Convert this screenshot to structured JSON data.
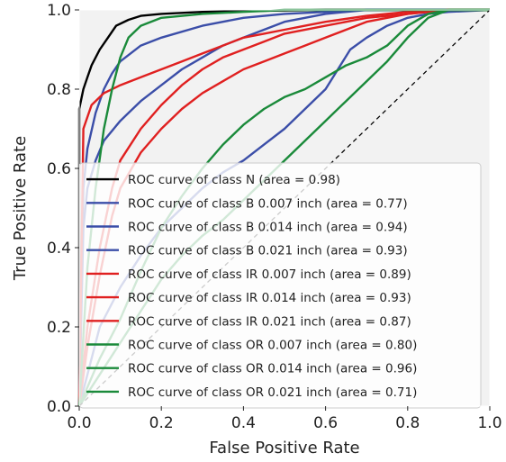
{
  "chart_data": {
    "type": "line",
    "title": "",
    "xlabel": "False Positive Rate",
    "ylabel": "True Positive Rate",
    "xlim": [
      0.0,
      1.0
    ],
    "ylim": [
      0.0,
      1.0
    ],
    "xticks": [
      "0.0",
      "0.2",
      "0.4",
      "0.6",
      "0.8",
      "1.0"
    ],
    "yticks": [
      "0.0",
      "0.2",
      "0.4",
      "0.6",
      "0.8",
      "1.0"
    ],
    "xtick_values": [
      0.0,
      0.2,
      0.4,
      0.6,
      0.8,
      1.0
    ],
    "ytick_values": [
      0.0,
      0.2,
      0.4,
      0.6,
      0.8,
      1.0
    ],
    "grid": false,
    "legend_position": "lower-right",
    "background_color": "#f2f2f2",
    "diagonal_reference": {
      "x": [
        0,
        1
      ],
      "y": [
        0,
        1
      ],
      "color": "#000000",
      "style": "dashed"
    },
    "series": [
      {
        "name": "ROC curve of class N (area = 0.98)",
        "color": "#000000",
        "x": [
          0,
          0.0,
          0.01,
          0.02,
          0.03,
          0.05,
          0.07,
          0.09,
          0.12,
          0.15,
          0.2,
          0.3,
          0.45,
          0.6,
          0.8,
          1.0
        ],
        "y": [
          0,
          0.75,
          0.8,
          0.83,
          0.86,
          0.9,
          0.93,
          0.96,
          0.975,
          0.985,
          0.99,
          0.995,
          0.998,
          1.0,
          1.0,
          1.0
        ]
      },
      {
        "name": "ROC curve of class B 0.007 inch (area = 0.77)",
        "color": "#3b4ea8",
        "x": [
          0,
          0.05,
          0.1,
          0.15,
          0.2,
          0.25,
          0.3,
          0.35,
          0.4,
          0.45,
          0.5,
          0.55,
          0.6,
          0.63,
          0.66,
          0.7,
          0.75,
          0.8,
          0.85,
          0.9,
          1.0
        ],
        "y": [
          0,
          0.2,
          0.3,
          0.38,
          0.45,
          0.5,
          0.55,
          0.59,
          0.62,
          0.66,
          0.7,
          0.75,
          0.8,
          0.85,
          0.9,
          0.93,
          0.96,
          0.98,
          0.99,
          0.995,
          1.0
        ]
      },
      {
        "name": "ROC curve of class B 0.014 inch (area = 0.94)",
        "color": "#3b4ea8",
        "x": [
          0,
          0.01,
          0.02,
          0.04,
          0.06,
          0.08,
          0.1,
          0.15,
          0.2,
          0.3,
          0.4,
          0.5,
          0.6,
          0.7,
          0.85,
          1.0
        ],
        "y": [
          0,
          0.55,
          0.65,
          0.74,
          0.8,
          0.84,
          0.87,
          0.91,
          0.93,
          0.96,
          0.98,
          0.99,
          0.995,
          1.0,
          1.0,
          1.0
        ]
      },
      {
        "name": "ROC curve of class B 0.021 inch (area = 0.93)",
        "color": "#3b4ea8",
        "x": [
          0,
          0.01,
          0.02,
          0.04,
          0.06,
          0.1,
          0.15,
          0.2,
          0.25,
          0.3,
          0.35,
          0.4,
          0.45,
          0.5,
          0.6,
          0.7,
          0.8,
          1.0
        ],
        "y": [
          0,
          0.45,
          0.55,
          0.62,
          0.67,
          0.72,
          0.77,
          0.81,
          0.85,
          0.88,
          0.91,
          0.93,
          0.95,
          0.97,
          0.99,
          1.0,
          1.0,
          1.0
        ]
      },
      {
        "name": "ROC curve of class IR 0.007 inch (area = 0.89)",
        "color": "#e02020",
        "x": [
          0,
          0.01,
          0.03,
          0.06,
          0.1,
          0.15,
          0.2,
          0.25,
          0.3,
          0.35,
          0.4,
          0.45,
          0.5,
          0.55,
          0.6,
          0.7,
          0.8,
          0.9,
          1.0
        ],
        "y": [
          0,
          0.7,
          0.76,
          0.79,
          0.81,
          0.83,
          0.85,
          0.87,
          0.89,
          0.91,
          0.93,
          0.94,
          0.95,
          0.96,
          0.97,
          0.985,
          0.995,
          1.0,
          1.0
        ]
      },
      {
        "name": "ROC curve of class IR 0.014 inch (area = 0.93)",
        "color": "#e02020",
        "x": [
          0,
          0.02,
          0.05,
          0.08,
          0.1,
          0.15,
          0.2,
          0.25,
          0.3,
          0.35,
          0.4,
          0.45,
          0.5,
          0.6,
          0.7,
          0.8,
          0.9,
          1.0
        ],
        "y": [
          0,
          0.2,
          0.4,
          0.55,
          0.62,
          0.7,
          0.76,
          0.81,
          0.85,
          0.88,
          0.9,
          0.92,
          0.94,
          0.96,
          0.98,
          0.99,
          1.0,
          1.0
        ]
      },
      {
        "name": "ROC curve of class IR 0.021 inch (area = 0.87)",
        "color": "#e02020",
        "x": [
          0,
          0.02,
          0.05,
          0.08,
          0.1,
          0.15,
          0.2,
          0.25,
          0.3,
          0.35,
          0.4,
          0.45,
          0.5,
          0.55,
          0.6,
          0.65,
          0.7,
          0.75,
          0.8,
          0.9,
          1.0
        ],
        "y": [
          0,
          0.15,
          0.33,
          0.48,
          0.55,
          0.64,
          0.7,
          0.75,
          0.79,
          0.82,
          0.85,
          0.87,
          0.89,
          0.91,
          0.93,
          0.95,
          0.97,
          0.98,
          0.99,
          1.0,
          1.0
        ]
      },
      {
        "name": "ROC curve of class OR 0.007 inch (area = 0.80)",
        "color": "#1a8a3a",
        "x": [
          0,
          0.05,
          0.1,
          0.15,
          0.2,
          0.25,
          0.3,
          0.35,
          0.4,
          0.45,
          0.5,
          0.55,
          0.6,
          0.65,
          0.7,
          0.75,
          0.8,
          0.85,
          0.9,
          1.0
        ],
        "y": [
          0,
          0.12,
          0.22,
          0.34,
          0.45,
          0.53,
          0.6,
          0.66,
          0.71,
          0.75,
          0.78,
          0.8,
          0.83,
          0.86,
          0.88,
          0.91,
          0.96,
          0.99,
          1.0,
          1.0
        ]
      },
      {
        "name": "ROC curve of class OR 0.014 inch (area = 0.96)",
        "color": "#1a8a3a",
        "x": [
          0,
          0.02,
          0.04,
          0.06,
          0.08,
          0.1,
          0.12,
          0.15,
          0.2,
          0.3,
          0.4,
          0.5,
          0.7,
          1.0
        ],
        "y": [
          0,
          0.35,
          0.55,
          0.7,
          0.8,
          0.88,
          0.93,
          0.96,
          0.98,
          0.99,
          0.995,
          1.0,
          1.0,
          1.0
        ]
      },
      {
        "name": "ROC curve of class OR 0.021 inch (area = 0.71)",
        "color": "#1a8a3a",
        "x": [
          0,
          0.05,
          0.1,
          0.15,
          0.2,
          0.25,
          0.3,
          0.35,
          0.4,
          0.45,
          0.5,
          0.55,
          0.6,
          0.65,
          0.7,
          0.75,
          0.8,
          0.85,
          0.9,
          1.0
        ],
        "y": [
          0,
          0.08,
          0.16,
          0.24,
          0.32,
          0.38,
          0.43,
          0.47,
          0.52,
          0.57,
          0.62,
          0.67,
          0.72,
          0.77,
          0.82,
          0.87,
          0.93,
          0.98,
          1.0,
          1.0
        ]
      }
    ]
  }
}
